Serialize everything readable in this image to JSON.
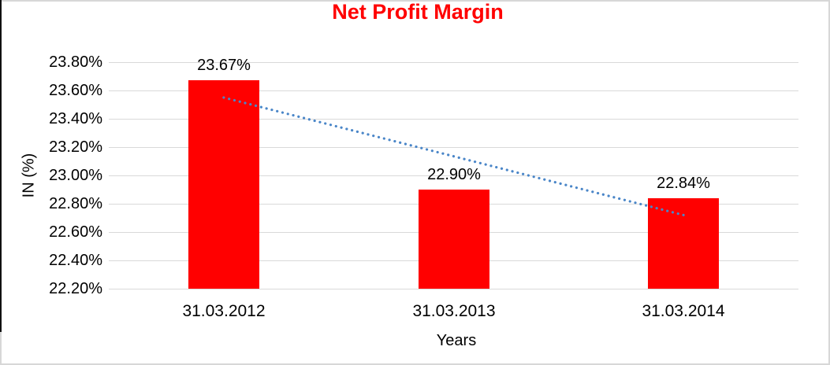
{
  "chart_data": {
    "type": "bar",
    "title": "Net Profit Margin",
    "title_color": "#ff0000",
    "categories": [
      "31.03.2012",
      "31.03.2013",
      "31.03.2014"
    ],
    "values": [
      23.67,
      22.9,
      22.84
    ],
    "data_labels": [
      "23.67%",
      "22.90%",
      "22.84%"
    ],
    "bar_color": "#ff0000",
    "xlabel": "Years",
    "ylabel": "IN (%)",
    "ylim": [
      22.2,
      23.8
    ],
    "yticks": [
      "23.80%",
      "23.60%",
      "23.40%",
      "23.20%",
      "23.00%",
      "22.80%",
      "22.60%",
      "22.40%",
      "22.20%"
    ],
    "grid": true,
    "gridline_color": "#d9d9d9",
    "legend": "none",
    "trendline": {
      "style": "dotted",
      "color": "#4a86c8",
      "start_value": 23.55,
      "end_value": 22.72
    }
  }
}
